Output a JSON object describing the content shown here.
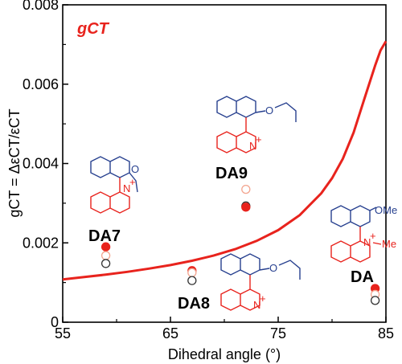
{
  "colors": {
    "curve": "#e8231d",
    "point_red": "#e8231d",
    "point_open_red": "#f3a58f",
    "point_open_dark": "#333333",
    "structure_blue": "#27408f",
    "structure_red": "#e8231d"
  },
  "chart_data": {
    "type": "scatter",
    "title": "",
    "legend_label": "gCT",
    "xlabel": "Dihedral angle (°)",
    "ylabel": "gCT = ΔεCT/εCT",
    "xlim": [
      55,
      85
    ],
    "ylim": [
      0,
      0.008
    ],
    "x_ticks": [
      55,
      65,
      75,
      85
    ],
    "y_ticks": [
      0,
      0.002,
      0.004,
      0.006,
      0.008
    ],
    "x_tick_labels": [
      "55",
      "65",
      "75",
      "85"
    ],
    "y_tick_labels": [
      "0",
      "0.002",
      "0.004",
      "0.006",
      "0.008"
    ],
    "grid": false,
    "curve": {
      "x": [
        55,
        57,
        59,
        61,
        63,
        65,
        67,
        69,
        71,
        73,
        75,
        77,
        79,
        80,
        81,
        82,
        83,
        84,
        84.5,
        85
      ],
      "y": [
        0.00108,
        0.00114,
        0.0012,
        0.00127,
        0.00135,
        0.00144,
        0.00155,
        0.00168,
        0.00184,
        0.00205,
        0.00232,
        0.0027,
        0.00325,
        0.00363,
        0.00412,
        0.00478,
        0.00563,
        0.00647,
        0.00685,
        0.00708
      ]
    },
    "compounds": [
      {
        "label": "DA7",
        "x": 59,
        "points": [
          {
            "y": 0.0019,
            "style": "filled-red"
          },
          {
            "y": 0.00168,
            "style": "open-red"
          },
          {
            "y": 0.00148,
            "style": "open-dark"
          }
        ]
      },
      {
        "label": "DA8",
        "x": 67,
        "points": [
          {
            "y": 0.0013,
            "style": "filled-red"
          },
          {
            "y": 0.00125,
            "style": "open-red"
          },
          {
            "y": 0.00105,
            "style": "open-dark"
          }
        ]
      },
      {
        "label": "DA9",
        "x": 72,
        "points": [
          {
            "y": 0.00335,
            "style": "open-red"
          },
          {
            "y": 0.00293,
            "style": "open-dark"
          },
          {
            "y": 0.0029,
            "style": "filled-red"
          }
        ]
      },
      {
        "label": "DA",
        "x": 84,
        "points": [
          {
            "y": 0.00085,
            "style": "filled-red"
          },
          {
            "y": 0.0007,
            "style": "open-red"
          },
          {
            "y": 0.00055,
            "style": "open-dark"
          }
        ]
      }
    ],
    "structure_labels": {
      "oxygen": "O",
      "nitrogen": "N",
      "nitrogen_charge": "+",
      "methoxy": "OMe",
      "methyl": "Me"
    }
  }
}
